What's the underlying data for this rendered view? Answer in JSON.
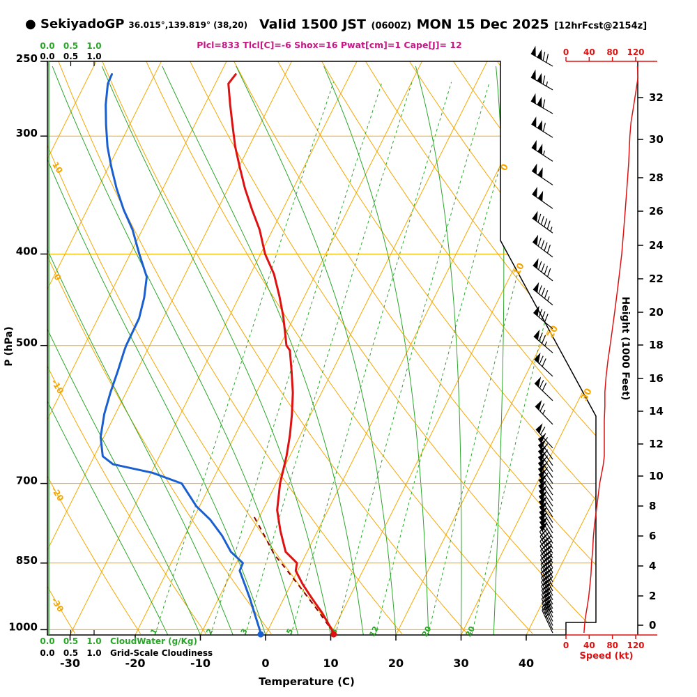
{
  "header": {
    "station_bullet": "●",
    "station": "SekiyadoGP",
    "coords": "36.015°,139.819° (38,20)",
    "valid_main1": "Valid 1500 JST",
    "valid_small1": "(0600Z)",
    "valid_main2": "MON 15 Dec 2025",
    "valid_small2": "[12hrFcst@2154z]",
    "indices": "Plcl=833 Tlcl[C]=-6 Shox=16 Pwat[cm]=1 Cape[J]= 12"
  },
  "colors": {
    "grid_orange": "#f5a700",
    "green": "#2aa52a",
    "temp_red": "#dd1111",
    "dew_blue": "#1a5fd0",
    "parcel_maroon": "#8b0000",
    "speed_red": "#dd1111",
    "indices_magenta": "#c71585",
    "black": "#000000"
  },
  "chart_data": {
    "type": "skewt_logp_sounding",
    "pressure_axis": {
      "label": "P (hPa)",
      "ticks": [
        250,
        300,
        400,
        500,
        700,
        850,
        1000
      ],
      "range": [
        250,
        1013
      ]
    },
    "temperature_axis": {
      "label": "Temperature (C)",
      "ticks": [
        -30,
        -20,
        -10,
        0,
        10,
        20,
        30,
        40
      ]
    },
    "height_axis": {
      "label": "Height (1000 Feet)",
      "ticks_kft_y": [
        [
          0,
          897
        ],
        [
          2,
          855
        ],
        [
          4,
          812
        ],
        [
          6,
          769
        ],
        [
          8,
          726
        ],
        [
          10,
          683
        ],
        [
          12,
          637
        ],
        [
          14,
          590
        ],
        [
          16,
          543
        ],
        [
          18,
          495
        ],
        [
          20,
          448
        ],
        [
          22,
          400
        ],
        [
          24,
          352
        ],
        [
          26,
          303
        ],
        [
          28,
          255
        ],
        [
          30,
          200
        ],
        [
          32,
          140
        ]
      ]
    },
    "speed_axis": {
      "label": "Speed (kt)",
      "ticks": [
        0,
        40,
        80,
        120
      ],
      "max": 120
    },
    "cloud_axis": {
      "cloudwater_label": "CloudWater (g/Kg)",
      "cloudiness_label": "Grid-Scale Cloudiness",
      "scale_labels": [
        "0.0",
        "0.5",
        "1.0"
      ]
    },
    "grid": {
      "isotherms_C": [
        -120,
        -110,
        -100,
        -90,
        -80,
        -70,
        -60,
        -50,
        -40,
        -30,
        -20,
        -10,
        0,
        10,
        20,
        30,
        40
      ],
      "dry_adiabats_C": [
        -40,
        -30,
        -20,
        -10,
        0,
        10,
        20,
        30,
        40,
        50,
        60,
        70,
        80,
        90,
        100,
        110,
        120,
        130,
        140,
        150,
        160
      ],
      "moist_adiabats_C": [
        -15,
        -10,
        -5,
        0,
        5,
        10,
        15,
        20,
        25,
        30,
        35
      ],
      "mixing_ratio_g_kg": [
        1,
        2,
        3,
        5,
        8,
        12,
        20,
        30
      ],
      "dry_adiabat_left_labels": [
        10,
        0,
        -10,
        -20,
        -30
      ],
      "isotherm_right_labels": [
        0,
        10,
        20,
        30
      ]
    },
    "temperature_profile_pT": [
      [
        1008,
        10.3
      ],
      [
        960,
        7.0
      ],
      [
        925,
        4.2
      ],
      [
        895,
        1.8
      ],
      [
        866,
        -0.3
      ],
      [
        850,
        -0.7
      ],
      [
        827,
        -3.3
      ],
      [
        786,
        -5.7
      ],
      [
        747,
        -7.8
      ],
      [
        700,
        -9.4
      ],
      [
        655,
        -10.5
      ],
      [
        622,
        -11.6
      ],
      [
        591,
        -12.9
      ],
      [
        561,
        -14.4
      ],
      [
        533,
        -16.2
      ],
      [
        506,
        -18.1
      ],
      [
        500,
        -19.0
      ],
      [
        466,
        -21.7
      ],
      [
        443,
        -23.9
      ],
      [
        420,
        -26.4
      ],
      [
        400,
        -29.3
      ],
      [
        377,
        -32.0
      ],
      [
        359,
        -34.7
      ],
      [
        341,
        -37.4
      ],
      [
        324,
        -39.8
      ],
      [
        308,
        -42.1
      ],
      [
        292,
        -44.2
      ],
      [
        278,
        -46.1
      ],
      [
        264,
        -48.0
      ],
      [
        258,
        -47.6
      ]
    ],
    "dewpoint_profile_pT": [
      [
        1008,
        -0.9
      ],
      [
        960,
        -3.4
      ],
      [
        925,
        -5.3
      ],
      [
        895,
        -7.1
      ],
      [
        866,
        -8.9
      ],
      [
        850,
        -9.0
      ],
      [
        827,
        -11.7
      ],
      [
        795,
        -14.3
      ],
      [
        765,
        -17.3
      ],
      [
        740,
        -20.5
      ],
      [
        700,
        -24.5
      ],
      [
        682,
        -29.8
      ],
      [
        668,
        -36.5
      ],
      [
        655,
        -38.7
      ],
      [
        625,
        -40.5
      ],
      [
        591,
        -41.7
      ],
      [
        561,
        -42.4
      ],
      [
        533,
        -42.9
      ],
      [
        506,
        -43.5
      ],
      [
        500,
        -43.6
      ],
      [
        468,
        -43.7
      ],
      [
        445,
        -44.5
      ],
      [
        423,
        -45.7
      ],
      [
        400,
        -48.6
      ],
      [
        377,
        -51.5
      ],
      [
        359,
        -54.4
      ],
      [
        341,
        -57.1
      ],
      [
        324,
        -59.5
      ],
      [
        308,
        -61.7
      ],
      [
        292,
        -63.6
      ],
      [
        278,
        -65.2
      ],
      [
        264,
        -66.5
      ],
      [
        258,
        -66.6
      ]
    ],
    "parcel_profile_pT": [
      [
        1008,
        10.3
      ],
      [
        950,
        5.8
      ],
      [
        900,
        1.5
      ],
      [
        850,
        -3.1
      ],
      [
        833,
        -4.8
      ],
      [
        810,
        -6.6
      ],
      [
        790,
        -8.2
      ],
      [
        770,
        -9.9
      ],
      [
        755,
        -11.2
      ]
    ],
    "wind_speed_profile_pkt": [
      [
        253,
        123
      ],
      [
        260,
        124
      ],
      [
        270,
        120
      ],
      [
        280,
        116
      ],
      [
        290,
        112
      ],
      [
        300,
        110
      ],
      [
        320,
        108
      ],
      [
        340,
        105
      ],
      [
        360,
        102
      ],
      [
        380,
        99
      ],
      [
        400,
        96
      ],
      [
        420,
        92
      ],
      [
        440,
        88
      ],
      [
        460,
        84
      ],
      [
        480,
        80
      ],
      [
        500,
        76
      ],
      [
        520,
        72
      ],
      [
        540,
        69
      ],
      [
        560,
        67
      ],
      [
        580,
        67
      ],
      [
        600,
        66
      ],
      [
        620,
        66
      ],
      [
        645,
        66
      ],
      [
        655,
        66
      ],
      [
        670,
        64
      ],
      [
        685,
        61
      ],
      [
        700,
        58
      ],
      [
        725,
        55
      ],
      [
        750,
        52
      ],
      [
        775,
        49
      ],
      [
        800,
        47
      ],
      [
        825,
        46
      ],
      [
        850,
        44
      ],
      [
        875,
        43
      ],
      [
        900,
        41
      ],
      [
        925,
        39
      ],
      [
        950,
        36
      ],
      [
        975,
        33
      ],
      [
        990,
        32
      ],
      [
        1008,
        31
      ]
    ],
    "wind_barbs_p_kt_dir": [
      [
        253,
        120,
        300
      ],
      [
        268,
        115,
        300
      ],
      [
        284,
        110,
        300
      ],
      [
        301,
        110,
        302
      ],
      [
        319,
        105,
        303
      ],
      [
        338,
        100,
        304
      ],
      [
        358,
        100,
        305
      ],
      [
        380,
        95,
        306
      ],
      [
        403,
        90,
        307
      ],
      [
        427,
        90,
        308
      ],
      [
        453,
        85,
        309
      ],
      [
        480,
        80,
        310
      ],
      [
        509,
        75,
        311
      ],
      [
        539,
        70,
        313
      ],
      [
        572,
        70,
        314
      ],
      [
        606,
        65,
        316
      ],
      [
        642,
        65,
        318
      ],
      [
        660,
        64,
        325
      ],
      [
        670,
        63,
        325
      ],
      [
        680,
        62,
        325
      ],
      [
        690,
        61,
        325
      ],
      [
        700,
        60,
        325
      ],
      [
        710,
        59,
        325
      ],
      [
        720,
        58,
        326
      ],
      [
        730,
        57,
        326
      ],
      [
        740,
        56,
        326
      ],
      [
        750,
        55,
        327
      ],
      [
        760,
        54,
        327
      ],
      [
        770,
        53,
        327
      ],
      [
        780,
        52,
        328
      ],
      [
        790,
        51,
        328
      ],
      [
        800,
        50,
        328
      ],
      [
        810,
        49,
        329
      ],
      [
        820,
        48,
        329
      ],
      [
        830,
        47,
        329
      ],
      [
        840,
        46,
        330
      ],
      [
        850,
        45,
        330
      ],
      [
        860,
        44,
        330
      ],
      [
        870,
        43,
        331
      ],
      [
        880,
        42,
        331
      ],
      [
        890,
        41,
        331
      ],
      [
        900,
        40,
        332
      ],
      [
        910,
        39,
        332
      ],
      [
        920,
        38,
        332
      ],
      [
        930,
        37,
        333
      ],
      [
        940,
        36,
        333
      ],
      [
        950,
        35,
        333
      ],
      [
        960,
        34,
        334
      ],
      [
        970,
        33,
        334
      ],
      [
        980,
        33,
        334
      ],
      [
        990,
        32,
        335
      ],
      [
        1000,
        31,
        335
      ],
      [
        1008,
        31,
        335
      ]
    ],
    "surface_dots": {
      "temperature_C": 10.3,
      "dewpoint_C": -0.9,
      "pressure_hPa": 1008
    }
  }
}
